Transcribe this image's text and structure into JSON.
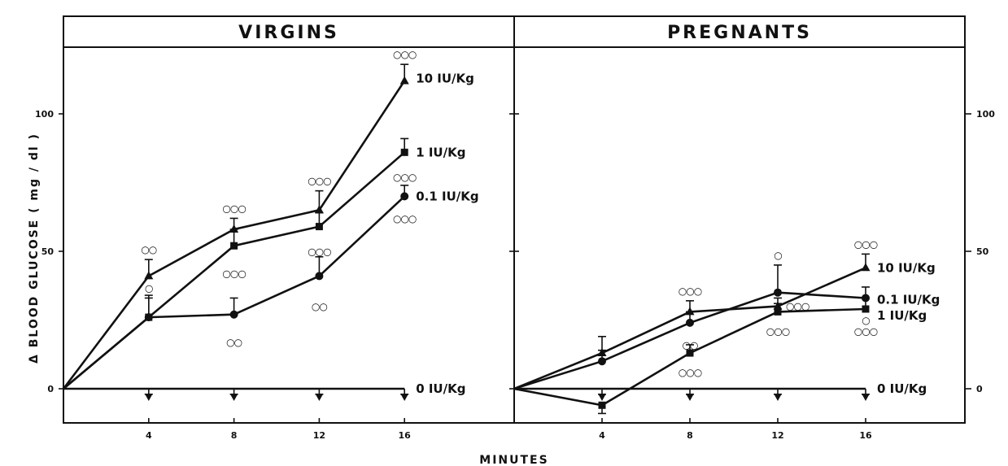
{
  "xlabel": "MINUTES",
  "ylabel": "Δ BLOOD GLUCOSE ( mg / dl )",
  "chart_data": [
    {
      "type": "line",
      "title": "VIRGINS",
      "xlabel": "MINUTES",
      "ylabel": "Δ BLOOD GLUCOSE ( mg / dl )",
      "xlim": [
        0,
        20
      ],
      "ylim": [
        -12,
        124
      ],
      "x_ticks": [
        "4",
        "8",
        "12",
        "16"
      ],
      "y_ticks": [
        "0",
        "50",
        "100"
      ],
      "grid": false,
      "series": [
        {
          "name": "10 IU/Kg",
          "marker": "triangle",
          "x": [
            0,
            4,
            8,
            12,
            16
          ],
          "y": [
            0,
            41,
            58,
            65,
            112
          ],
          "err": [
            0,
            6,
            4,
            7,
            6
          ],
          "sig": [
            null,
            "○○",
            "○○○",
            "○○○",
            "○○○"
          ],
          "sig_pos": [
            null,
            "above",
            "above",
            "above",
            "above"
          ]
        },
        {
          "name": "1 IU/Kg",
          "marker": "square",
          "x": [
            0,
            4,
            8,
            12,
            16
          ],
          "y": [
            0,
            26,
            52,
            59,
            86
          ],
          "err": [
            0,
            7,
            6,
            5,
            5
          ],
          "sig": [
            null,
            "○",
            "○○○",
            "○○○",
            "○○○"
          ],
          "sig_pos": [
            null,
            "above",
            "below",
            "below",
            "below"
          ]
        },
        {
          "name": "0.1 IU/Kg",
          "marker": "circle",
          "x": [
            0,
            4,
            8,
            12,
            16
          ],
          "y": [
            0,
            26,
            27,
            41,
            70
          ],
          "err": [
            0,
            8,
            6,
            7,
            4
          ],
          "sig": [
            null,
            null,
            "○○",
            "○○",
            "○○○"
          ],
          "sig_pos": [
            null,
            null,
            "below",
            "below",
            "below"
          ]
        },
        {
          "name": "0 IU/Kg",
          "marker": "inverted-triangle",
          "x": [
            0,
            4,
            8,
            12,
            16
          ],
          "y": [
            0,
            0,
            0,
            0,
            0
          ],
          "err": [
            0,
            2,
            2,
            2,
            2
          ],
          "sig": [
            null,
            null,
            null,
            null,
            null
          ],
          "sig_pos": [
            null,
            null,
            null,
            null,
            null
          ]
        }
      ]
    },
    {
      "type": "line",
      "title": "PREGNANTS",
      "xlabel": "MINUTES",
      "ylabel": "",
      "xlim": [
        0,
        20
      ],
      "ylim": [
        -12,
        124
      ],
      "x_ticks": [
        "4",
        "8",
        "12",
        "16"
      ],
      "y_ticks": [
        "0",
        "50",
        "100"
      ],
      "grid": false,
      "series": [
        {
          "name": "10 IU/Kg",
          "marker": "triangle",
          "x": [
            0,
            4,
            8,
            12,
            16
          ],
          "y": [
            0,
            13,
            28,
            30,
            44
          ],
          "err": [
            0,
            6,
            4,
            3,
            5
          ],
          "sig": [
            null,
            null,
            "○○○",
            "○○○",
            "○○○"
          ],
          "sig_pos": [
            null,
            null,
            "above",
            "right",
            "above"
          ]
        },
        {
          "name": "0.1 IU/Kg",
          "marker": "circle",
          "x": [
            0,
            4,
            8,
            12,
            16
          ],
          "y": [
            0,
            10,
            24,
            35,
            33
          ],
          "err": [
            0,
            4,
            4,
            10,
            4
          ],
          "sig": [
            null,
            null,
            "○○",
            "○",
            "○"
          ],
          "sig_pos": [
            null,
            null,
            "below",
            "above",
            "below"
          ]
        },
        {
          "name": "1 IU/Kg",
          "marker": "square",
          "x": [
            0,
            4,
            8,
            12,
            16
          ],
          "y": [
            0,
            -6,
            13,
            28,
            29
          ],
          "err": [
            0,
            3,
            3,
            3,
            4
          ],
          "sig": [
            null,
            null,
            "○○○",
            "○○○",
            "○○○"
          ],
          "sig_pos": [
            null,
            null,
            "below",
            "below",
            "below"
          ]
        },
        {
          "name": "0 IU/Kg",
          "marker": "inverted-triangle",
          "x": [
            0,
            4,
            8,
            12,
            16
          ],
          "y": [
            0,
            0,
            0,
            0,
            0
          ],
          "err": [
            0,
            2,
            2,
            2,
            2
          ],
          "sig": [
            null,
            null,
            null,
            null,
            null
          ],
          "sig_pos": [
            null,
            null,
            null,
            null,
            null
          ]
        }
      ]
    }
  ]
}
